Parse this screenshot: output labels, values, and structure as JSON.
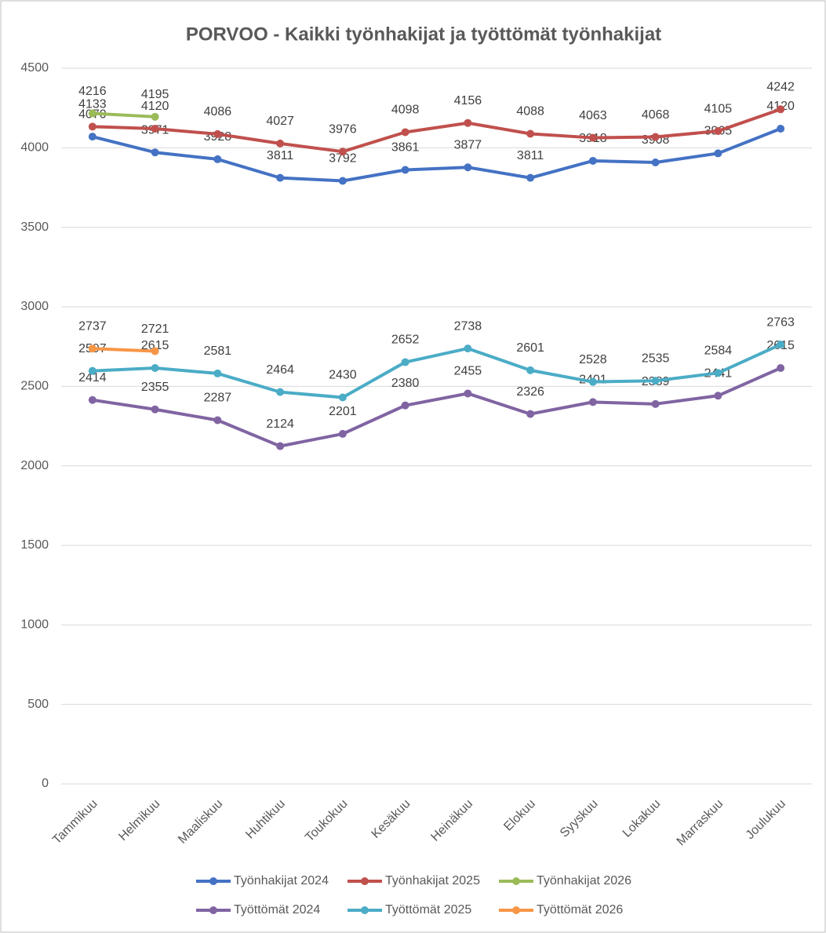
{
  "chart_data": {
    "type": "line",
    "title": "PORVOO - Kaikki työnhakijat ja työttömät työnhakijat",
    "categories": [
      "Tammikuu",
      "Helmikuu",
      "Maaliskuu",
      "Huhtikuu",
      "Toukokuu",
      "Kesäkuu",
      "Heinäkuu",
      "Elokuu",
      "Syyskuu",
      "Lokakuu",
      "Marraskuu",
      "Joulukuu"
    ],
    "series": [
      {
        "name": "Työnhakijat 2024",
        "color": "#4472c4",
        "values": [
          4070,
          3971,
          3928,
          3811,
          3792,
          3861,
          3877,
          3811,
          3918,
          3908,
          3965,
          4120
        ]
      },
      {
        "name": "Työnhakijat 2025",
        "color": "#c0504d",
        "values": [
          4133,
          4120,
          4086,
          4027,
          3976,
          4098,
          4156,
          4088,
          4063,
          4068,
          4105,
          4242
        ]
      },
      {
        "name": "Työnhakijat 2026",
        "color": "#9bbb59",
        "values": [
          4216,
          4195,
          null,
          null,
          null,
          null,
          null,
          null,
          null,
          null,
          null,
          null
        ]
      },
      {
        "name": "Työttömät 2024",
        "color": "#8064a2",
        "values": [
          2414,
          2355,
          2287,
          2124,
          2201,
          2380,
          2455,
          2326,
          2401,
          2389,
          2441,
          2615
        ]
      },
      {
        "name": "Työttömät 2025",
        "color": "#4bacc6",
        "values": [
          2597,
          2615,
          2581,
          2464,
          2430,
          2652,
          2738,
          2601,
          2528,
          2535,
          2584,
          2763
        ]
      },
      {
        "name": "Työttömät 2026",
        "color": "#f79646",
        "values": [
          2737,
          2721,
          null,
          null,
          null,
          null,
          null,
          null,
          null,
          null,
          null,
          null
        ]
      }
    ],
    "ylim": [
      0,
      4500
    ],
    "yticks": [
      0,
      500,
      1000,
      1500,
      2000,
      2500,
      3000,
      3500,
      4000,
      4500
    ],
    "grid": true,
    "legend": "bottom"
  }
}
